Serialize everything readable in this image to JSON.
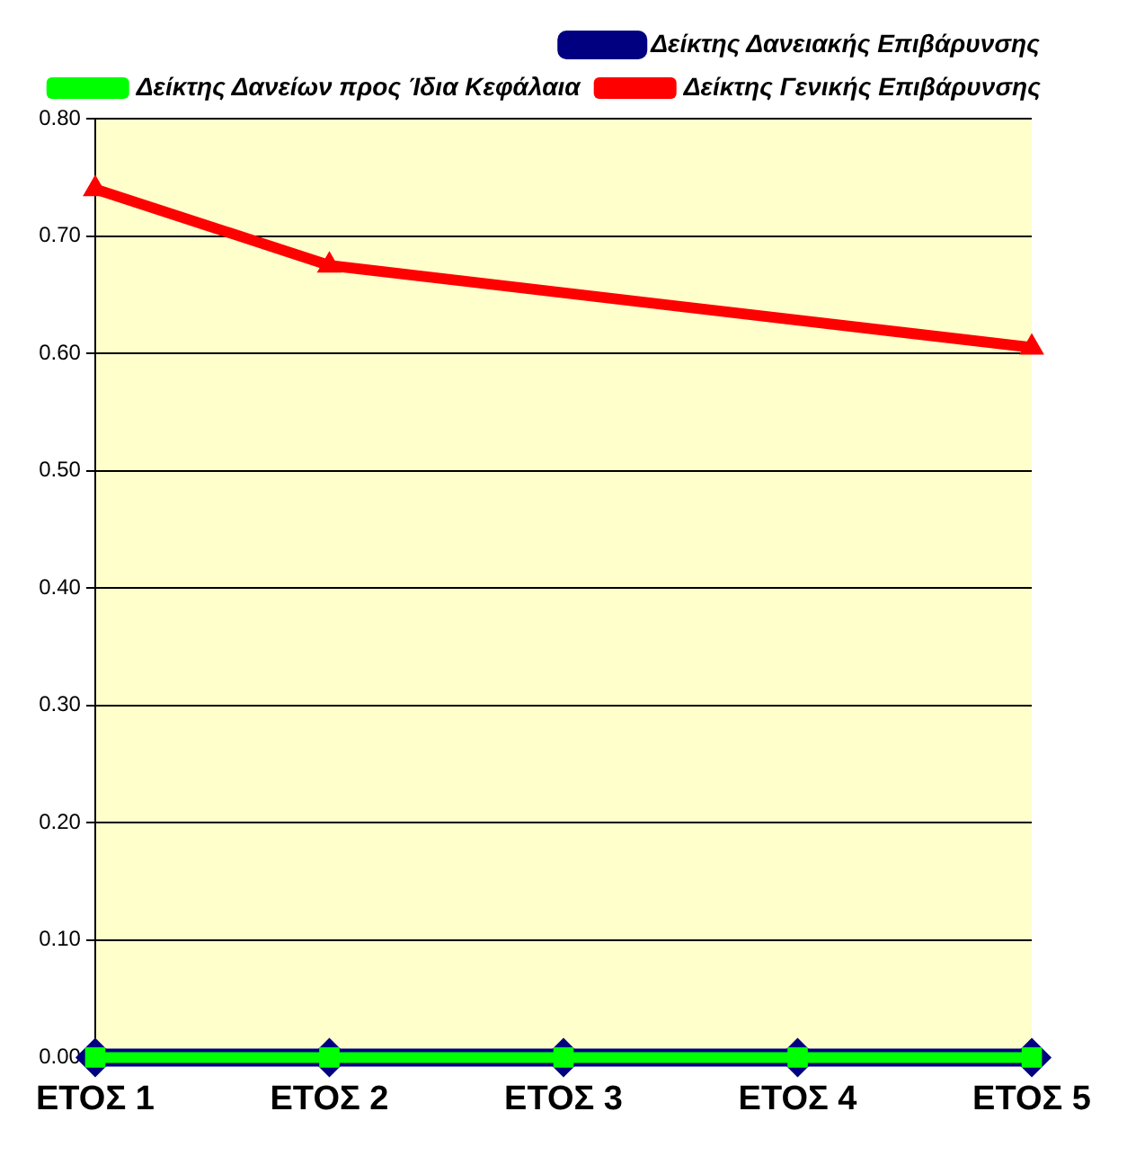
{
  "chart_data": {
    "type": "line",
    "categories": [
      "ΕΤΟΣ 1",
      "ΕΤΟΣ 2",
      "ΕΤΟΣ 3",
      "ΕΤΟΣ 4",
      "ΕΤΟΣ 5"
    ],
    "series": [
      {
        "name": "Δείκτης Δανειακής Επιβάρυνσης",
        "color": "#000080",
        "marker": "diamond",
        "values": [
          0,
          0,
          0,
          0,
          0
        ]
      },
      {
        "name": "Δείκτης Δανείων προς Ίδια Κεφάλαια",
        "color": "#00ff00",
        "marker": "square",
        "values": [
          0,
          0,
          0,
          0,
          0
        ]
      },
      {
        "name": "Δείκτης Γενικής Επιβάρυνσης",
        "color": "#ff0000",
        "marker": "triangle",
        "values": [
          0.74,
          0.675,
          null,
          null,
          0.605
        ]
      }
    ],
    "ylim": [
      0,
      0.8
    ],
    "yticks": [
      {
        "value": 0,
        "label": "0.00"
      },
      {
        "value": 0.1,
        "label": "0.10"
      },
      {
        "value": 0.2,
        "label": "0.20"
      },
      {
        "value": 0.3,
        "label": "0.30"
      },
      {
        "value": 0.4,
        "label": "0.40"
      },
      {
        "value": 0.5,
        "label": "0.50"
      },
      {
        "value": 0.6,
        "label": "0.60"
      },
      {
        "value": 0.7,
        "label": "0.70"
      },
      {
        "value": 0.8,
        "label": "0.80"
      }
    ],
    "grid": "y",
    "legend": "top right",
    "line_style": "solid"
  }
}
